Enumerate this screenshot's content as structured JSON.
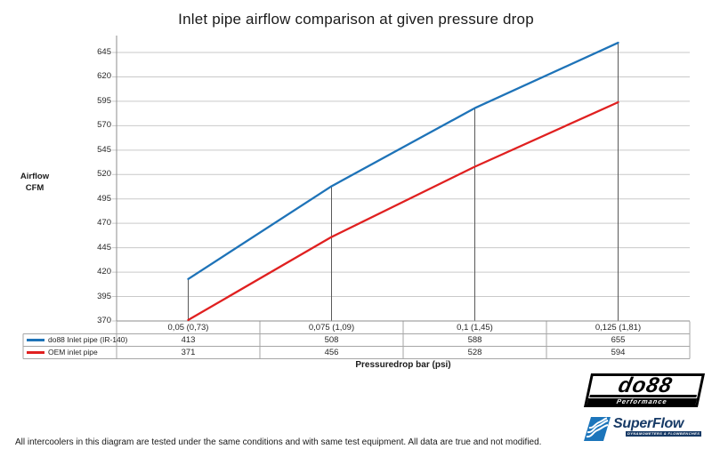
{
  "title": "Inlet pipe airflow comparison at given pressure drop",
  "chart_data": {
    "type": "line",
    "title": "Inlet pipe airflow comparison at given pressure drop",
    "categories": [
      "0,05 (0,73)",
      "0,075 (1,09)",
      "0,1 (1,45)",
      "0,125 (1,81)"
    ],
    "series": [
      {
        "name": "do88 Inlet pipe (IR-140)",
        "color": "#1E73B8",
        "values": [
          413,
          508,
          588,
          655
        ]
      },
      {
        "name": "OEM inlet pipe",
        "color": "#E02020",
        "values": [
          371,
          456,
          528,
          594
        ]
      }
    ],
    "ylabel_lines": [
      "Airflow",
      "CFM"
    ],
    "xlabel": "Pressuredrop bar (psi)",
    "y_ticks": [
      370,
      395,
      420,
      445,
      470,
      495,
      520,
      545,
      570,
      595,
      620,
      645
    ],
    "ylim": [
      370,
      658
    ],
    "grid": true,
    "droplines": true,
    "legend_position": "data-table-left",
    "colors": {
      "gridline": "#C9C9C9",
      "dropline": "#595959",
      "axis": "#8C8C8C",
      "table_border": "#A6A6A6",
      "text": "#262626"
    }
  },
  "footer": {
    "note": "All intercoolers in this diagram are tested under the same conditions and with same test equipment. All data are true and not modified."
  },
  "logos": {
    "do88": {
      "name": "do88",
      "tagline": "Performance"
    },
    "superflow": {
      "name": "SuperFlow",
      "tagline": "DYNAMOMETERS & FLOWBENCHES"
    }
  }
}
